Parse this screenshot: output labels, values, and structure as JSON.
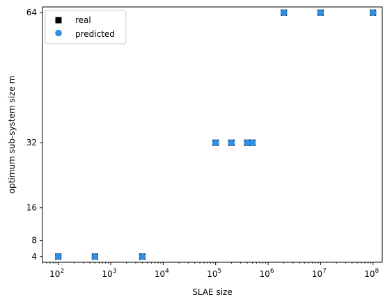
{
  "chart_data": {
    "type": "scatter",
    "xlabel": "SLAE size",
    "ylabel": "optimum sub-system size m",
    "xscale": "log",
    "xlim": [
      50,
      150000000
    ],
    "ylim": [
      2.6,
      65.4
    ],
    "x_ticks": [
      {
        "value": 100,
        "base": "10",
        "exp": "2"
      },
      {
        "value": 1000,
        "base": "10",
        "exp": "3"
      },
      {
        "value": 10000,
        "base": "10",
        "exp": "4"
      },
      {
        "value": 100000,
        "base": "10",
        "exp": "5"
      },
      {
        "value": 1000000,
        "base": "10",
        "exp": "6"
      },
      {
        "value": 10000000,
        "base": "10",
        "exp": "7"
      },
      {
        "value": 100000000,
        "base": "10",
        "exp": "8"
      }
    ],
    "y_ticks": [
      {
        "value": 4,
        "label": "4"
      },
      {
        "value": 8,
        "label": "8"
      },
      {
        "value": 16,
        "label": "16"
      },
      {
        "value": 32,
        "label": "32"
      },
      {
        "value": 64,
        "label": "64"
      }
    ],
    "grid": false,
    "legend_position": "top-left",
    "series": [
      {
        "name": "real",
        "marker": "square",
        "color": "#000000",
        "points": [
          {
            "x": 100,
            "y": 4
          },
          {
            "x": 500,
            "y": 4
          },
          {
            "x": 4000,
            "y": 4
          },
          {
            "x": 100000,
            "y": 32
          },
          {
            "x": 200000,
            "y": 32
          },
          {
            "x": 400000,
            "y": 32
          },
          {
            "x": 500000,
            "y": 32
          },
          {
            "x": 2000000,
            "y": 64
          },
          {
            "x": 10000000,
            "y": 64
          },
          {
            "x": 100000000,
            "y": 64
          }
        ]
      },
      {
        "name": "predicted",
        "marker": "circle",
        "color": "#2f8fe6",
        "points": [
          {
            "x": 100,
            "y": 4
          },
          {
            "x": 500,
            "y": 4
          },
          {
            "x": 4000,
            "y": 4
          },
          {
            "x": 100000,
            "y": 32
          },
          {
            "x": 200000,
            "y": 32
          },
          {
            "x": 400000,
            "y": 32
          },
          {
            "x": 500000,
            "y": 32
          },
          {
            "x": 2000000,
            "y": 64
          },
          {
            "x": 10000000,
            "y": 64
          },
          {
            "x": 100000000,
            "y": 64
          }
        ]
      }
    ]
  }
}
